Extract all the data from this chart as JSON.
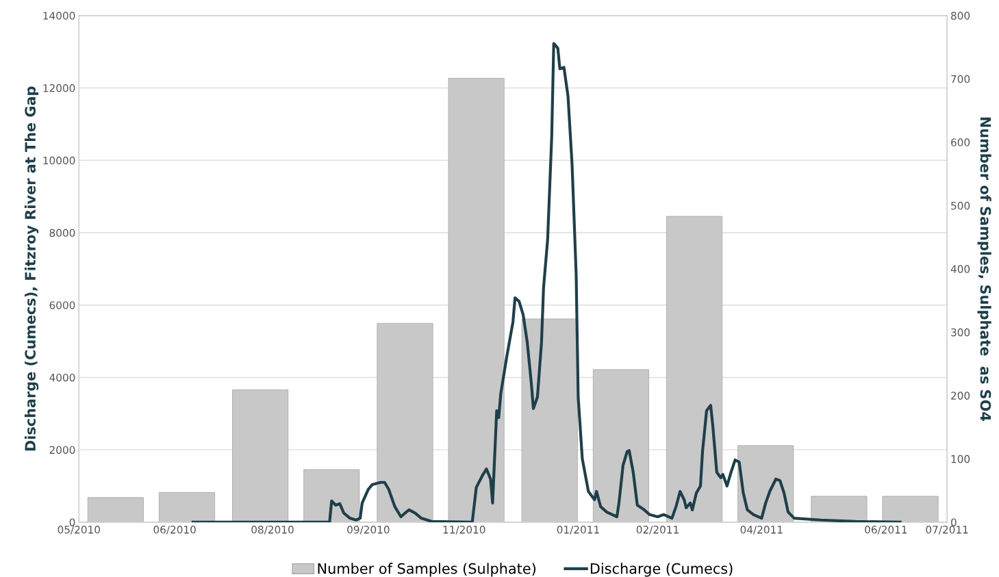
{
  "chart_data": {
    "type": "bar",
    "ylabel": "Discharge (Cumecs), Fitzroy River at The Gap",
    "y2label": "Number of Samples, Sulphate  as SO4",
    "xlim": [
      "2010-05-01",
      "2011-07-01"
    ],
    "xticks": [
      {
        "value": "2010-05-01",
        "label": "05/2010"
      },
      {
        "value": "2010-06-17",
        "label": "06/2010"
      },
      {
        "value": "2010-08-04",
        "label": "08/2010"
      },
      {
        "value": "2010-09-20",
        "label": "09/2010"
      },
      {
        "value": "2010-11-06",
        "label": "11/2010"
      },
      {
        "value": "2011-01-01",
        "label": "01/2011"
      },
      {
        "value": "2011-02-09",
        "label": "02/2011"
      },
      {
        "value": "2011-04-01",
        "label": "04/2011"
      },
      {
        "value": "2011-06-01",
        "label": "06/2011"
      },
      {
        "value": "2011-07-01",
        "label": "07/2011"
      }
    ],
    "ylim": [
      0,
      14000
    ],
    "yticks": [
      0,
      2000,
      4000,
      6000,
      8000,
      10000,
      12000,
      14000
    ],
    "y2lim": [
      0,
      800
    ],
    "y2ticks": [
      0,
      100,
      200,
      300,
      400,
      500,
      600,
      700,
      800
    ],
    "grid": "y",
    "legend": "bottom",
    "series": [
      {
        "name": "Number of Samples (Sulphate)",
        "axis": "y2",
        "color": "#c8c8c8",
        "x": [
          "2010-05-19",
          "2010-06-23",
          "2010-07-29",
          "2010-09-02",
          "2010-10-08",
          "2010-11-12",
          "2010-12-18",
          "2011-01-22",
          "2011-02-27",
          "2011-04-03",
          "2011-05-09",
          "2011-06-13"
        ],
        "values": [
          39,
          47,
          209,
          83,
          314,
          701,
          321,
          241,
          483,
          121,
          41,
          41
        ]
      },
      {
        "name": "Discharge (Cumecs)",
        "type": "line",
        "color": "#1f3f4a",
        "x": [
          "2010-06-26",
          "2010-09-01",
          "2010-09-02",
          "2010-09-04",
          "2010-09-06",
          "2010-09-08",
          "2010-09-11",
          "2010-09-14",
          "2010-09-16",
          "2010-09-17",
          "2010-09-20",
          "2010-09-22",
          "2010-09-26",
          "2010-09-28",
          "2010-09-30",
          "2010-10-03",
          "2010-10-06",
          "2010-10-08",
          "2010-10-10",
          "2010-10-13",
          "2010-10-16",
          "2010-10-21",
          "2010-11-10",
          "2010-11-12",
          "2010-11-15",
          "2010-11-17",
          "2010-11-19",
          "2010-11-20",
          "2010-11-22",
          "2010-11-23",
          "2010-11-24",
          "2010-11-27",
          "2010-11-30",
          "2010-12-01",
          "2010-12-03",
          "2010-12-05",
          "2010-12-07",
          "2010-12-09",
          "2010-12-10",
          "2010-12-12",
          "2010-12-14",
          "2010-12-15",
          "2010-12-17",
          "2010-12-19",
          "2010-12-20",
          "2010-12-22",
          "2010-12-23",
          "2010-12-25",
          "2010-12-27",
          "2010-12-29",
          "2010-12-31",
          "2011-01-01",
          "2011-01-03",
          "2011-01-06",
          "2011-01-09",
          "2011-01-10",
          "2011-01-12",
          "2011-01-15",
          "2011-01-20",
          "2011-01-21",
          "2011-01-23",
          "2011-01-25",
          "2011-01-26",
          "2011-01-28",
          "2011-01-30",
          "2011-02-02",
          "2011-02-05",
          "2011-02-09",
          "2011-02-12",
          "2011-02-16",
          "2011-02-18",
          "2011-02-20",
          "2011-02-22",
          "2011-02-23",
          "2011-02-25",
          "2011-02-26",
          "2011-02-28",
          "2011-03-02",
          "2011-03-03",
          "2011-03-05",
          "2011-03-07",
          "2011-03-08",
          "2011-03-10",
          "2011-03-12",
          "2011-03-13",
          "2011-03-15",
          "2011-03-17",
          "2011-03-19",
          "2011-03-21",
          "2011-03-23",
          "2011-03-25",
          "2011-03-28",
          "2011-04-01",
          "2011-04-03",
          "2011-04-05",
          "2011-04-08",
          "2011-04-10",
          "2011-04-12",
          "2011-04-14",
          "2011-04-17",
          "2011-04-30",
          "2011-05-17",
          "2011-06-08"
        ],
        "values": [
          0,
          0,
          590,
          470,
          510,
          250,
          110,
          60,
          110,
          530,
          910,
          1040,
          1100,
          1100,
          910,
          430,
          150,
          250,
          340,
          250,
          110,
          20,
          0,
          960,
          1290,
          1470,
          1190,
          530,
          3080,
          2890,
          3550,
          4590,
          5540,
          6200,
          6100,
          5730,
          4970,
          3840,
          3140,
          3460,
          4970,
          6480,
          7810,
          10640,
          13230,
          13100,
          12530,
          12570,
          11770,
          9880,
          6860,
          3460,
          1760,
          850,
          620,
          850,
          430,
          280,
          150,
          530,
          1570,
          1950,
          1980,
          1380,
          470,
          360,
          210,
          150,
          210,
          110,
          430,
          850,
          620,
          400,
          530,
          340,
          810,
          1000,
          1950,
          3080,
          3230,
          2700,
          1380,
          1230,
          1320,
          1000,
          1380,
          1720,
          1660,
          810,
          340,
          210,
          110,
          530,
          850,
          1190,
          1150,
          810,
          280,
          110,
          60,
          20,
          0
        ]
      }
    ]
  }
}
